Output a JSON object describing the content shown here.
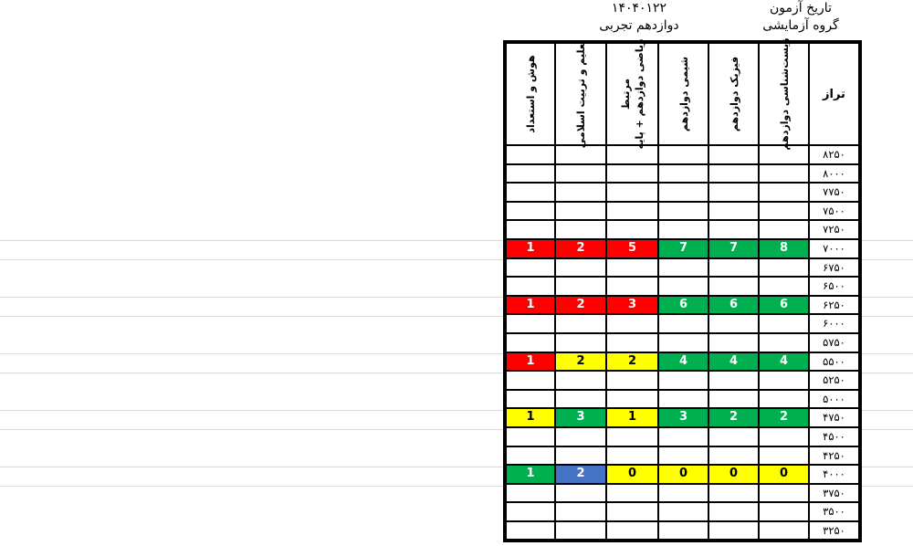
{
  "exam_info": {
    "date_label": "تاریخ آزمون",
    "group_label": "گروه آزمایشی",
    "date_value": "۱۴۰۴۰۱۲۲",
    "group_value": "دوازدهم تجربی"
  },
  "table": {
    "taraz_header": "تراز",
    "columns": [
      {
        "id": "zist",
        "lines": [
          "زیست‌شناسی دوازدهم"
        ]
      },
      {
        "id": "fizik",
        "lines": [
          "فیزیک دوازدهم"
        ]
      },
      {
        "id": "shimi",
        "lines": [
          "شیمی دوازدهم"
        ]
      },
      {
        "id": "riazi",
        "lines": [
          "ریاضی دوازدهم + پایه",
          "مرتبط"
        ]
      },
      {
        "id": "talim",
        "lines": [
          "تعلیم و تربیت اسلامی"
        ]
      },
      {
        "id": "hoosh",
        "lines": [
          "هوش و استعداد"
        ]
      }
    ],
    "rows": [
      {
        "taraz": "۸۲۵۰",
        "cells": [
          null,
          null,
          null,
          null,
          null,
          null
        ]
      },
      {
        "taraz": "۸۰۰۰",
        "cells": [
          null,
          null,
          null,
          null,
          null,
          null
        ]
      },
      {
        "taraz": "۷۷۵۰",
        "cells": [
          null,
          null,
          null,
          null,
          null,
          null
        ]
      },
      {
        "taraz": "۷۵۰۰",
        "cells": [
          null,
          null,
          null,
          null,
          null,
          null
        ]
      },
      {
        "taraz": "۷۲۵۰",
        "cells": [
          null,
          null,
          null,
          null,
          null,
          null
        ]
      },
      {
        "taraz": "۷۰۰۰",
        "cells": [
          {
            "v": "8",
            "c": "green"
          },
          {
            "v": "7",
            "c": "green"
          },
          {
            "v": "7",
            "c": "green"
          },
          {
            "v": "5",
            "c": "red"
          },
          {
            "v": "2",
            "c": "red"
          },
          {
            "v": "1",
            "c": "red"
          }
        ]
      },
      {
        "taraz": "۶۷۵۰",
        "cells": [
          null,
          null,
          null,
          null,
          null,
          null
        ]
      },
      {
        "taraz": "۶۵۰۰",
        "cells": [
          null,
          null,
          null,
          null,
          null,
          null
        ]
      },
      {
        "taraz": "۶۲۵۰",
        "cells": [
          {
            "v": "6",
            "c": "green"
          },
          {
            "v": "6",
            "c": "green"
          },
          {
            "v": "6",
            "c": "green"
          },
          {
            "v": "3",
            "c": "red"
          },
          {
            "v": "2",
            "c": "red"
          },
          {
            "v": "1",
            "c": "red"
          }
        ]
      },
      {
        "taraz": "۶۰۰۰",
        "cells": [
          null,
          null,
          null,
          null,
          null,
          null
        ]
      },
      {
        "taraz": "۵۷۵۰",
        "cells": [
          null,
          null,
          null,
          null,
          null,
          null
        ]
      },
      {
        "taraz": "۵۵۰۰",
        "cells": [
          {
            "v": "4",
            "c": "green"
          },
          {
            "v": "4",
            "c": "green"
          },
          {
            "v": "4",
            "c": "green"
          },
          {
            "v": "2",
            "c": "yellow"
          },
          {
            "v": "2",
            "c": "yellow"
          },
          {
            "v": "1",
            "c": "red"
          }
        ]
      },
      {
        "taraz": "۵۲۵۰",
        "cells": [
          null,
          null,
          null,
          null,
          null,
          null
        ]
      },
      {
        "taraz": "۵۰۰۰",
        "cells": [
          null,
          null,
          null,
          null,
          null,
          null
        ]
      },
      {
        "taraz": "۴۷۵۰",
        "cells": [
          {
            "v": "2",
            "c": "green"
          },
          {
            "v": "2",
            "c": "green"
          },
          {
            "v": "3",
            "c": "green"
          },
          {
            "v": "1",
            "c": "yellow"
          },
          {
            "v": "3",
            "c": "green"
          },
          {
            "v": "1",
            "c": "yellow"
          }
        ]
      },
      {
        "taraz": "۴۵۰۰",
        "cells": [
          null,
          null,
          null,
          null,
          null,
          null
        ]
      },
      {
        "taraz": "۴۲۵۰",
        "cells": [
          null,
          null,
          null,
          null,
          null,
          null
        ]
      },
      {
        "taraz": "۴۰۰۰",
        "cells": [
          {
            "v": "0",
            "c": "yellow"
          },
          {
            "v": "0",
            "c": "yellow"
          },
          {
            "v": "0",
            "c": "yellow"
          },
          {
            "v": "0",
            "c": "yellow"
          },
          {
            "v": "2",
            "c": "blue"
          },
          {
            "v": "1",
            "c": "green"
          }
        ]
      },
      {
        "taraz": "۳۷۵۰",
        "cells": [
          null,
          null,
          null,
          null,
          null,
          null
        ]
      },
      {
        "taraz": "۳۵۰۰",
        "cells": [
          null,
          null,
          null,
          null,
          null,
          null
        ]
      },
      {
        "taraz": "۳۲۵۰",
        "cells": [
          null,
          null,
          null,
          null,
          null,
          null
        ]
      }
    ]
  },
  "cell_styles": {
    "red": {
      "bg": "#FF0000",
      "fg": "#FFFFFF"
    },
    "green": {
      "bg": "#00B050",
      "fg": "#FFFFFF"
    },
    "yellow": {
      "bg": "#FFFF00",
      "fg": "#000000"
    },
    "blue": {
      "bg": "#4472C4",
      "fg": "#FFFFFF"
    }
  },
  "colors": {
    "sheet_gridline": "#D9D9D9",
    "table_border": "#000000",
    "background": "#FFFFFF"
  }
}
